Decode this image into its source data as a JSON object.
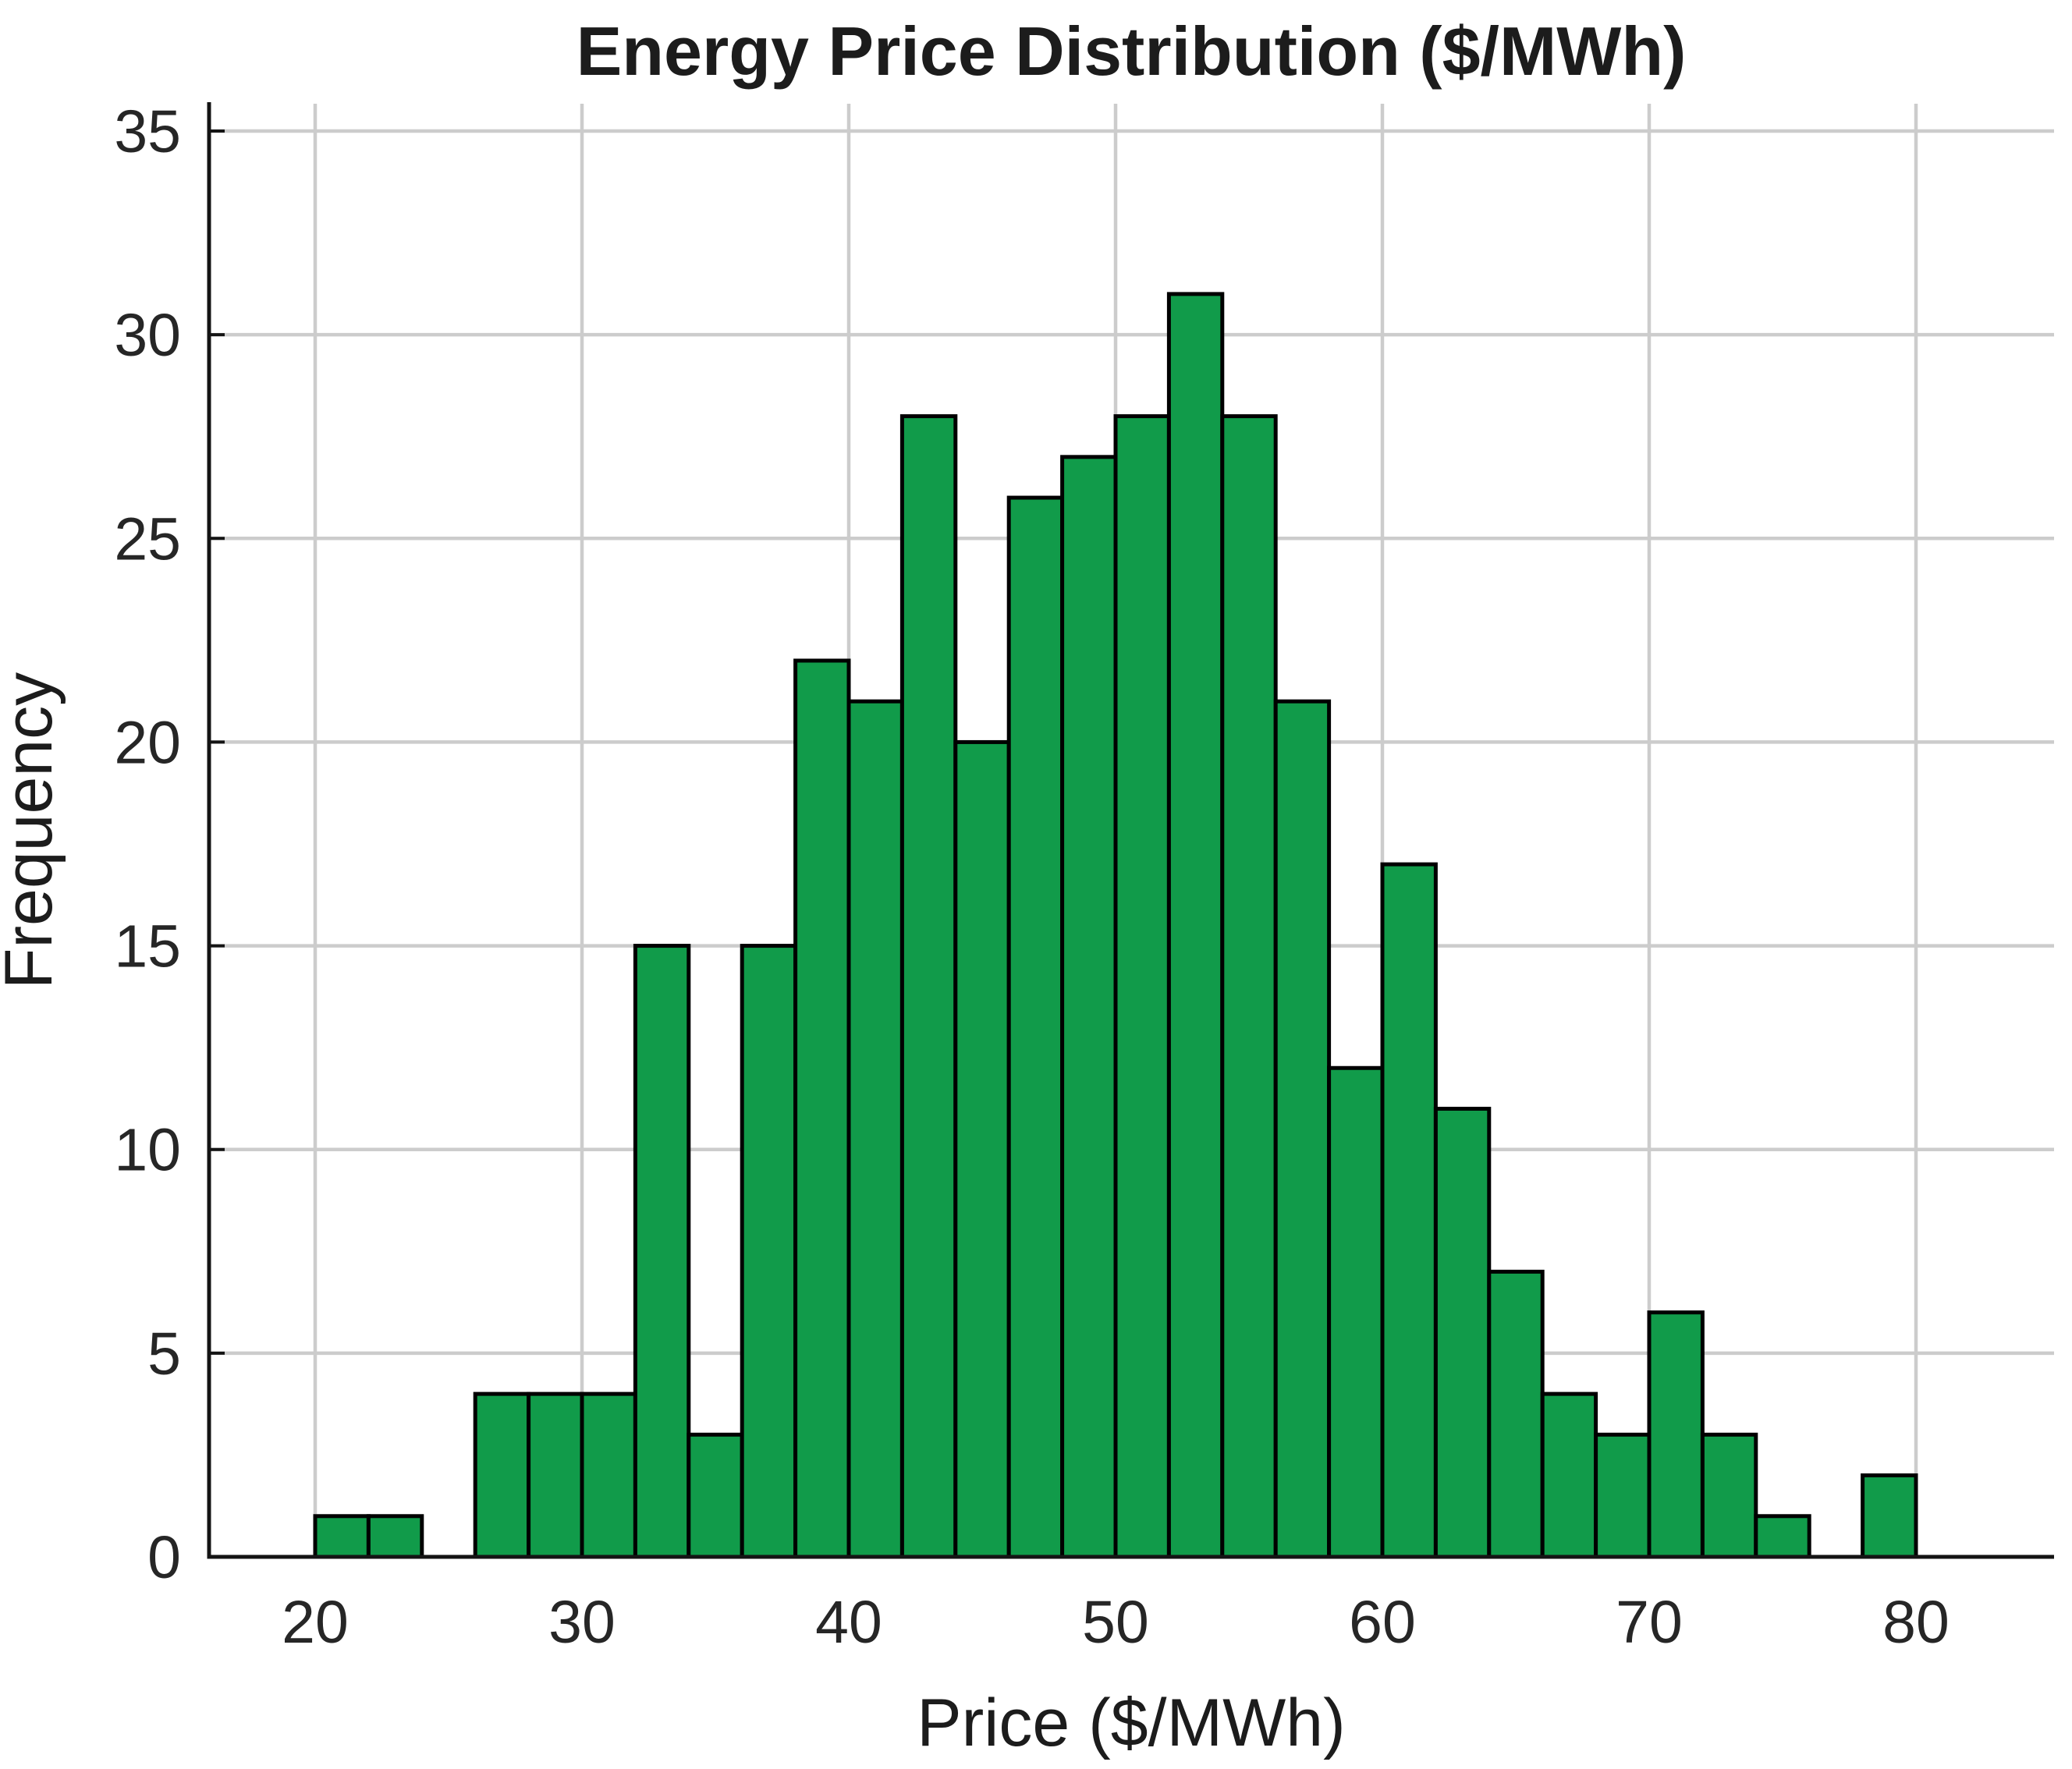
{
  "chart_data": {
    "type": "bar",
    "subtype": "histogram",
    "title": "Energy Price Distribution ($/MWh)",
    "xlabel": "Price ($/MWh)",
    "ylabel": "Frequency",
    "bin_start": 20,
    "bin_width": 2,
    "bin_edges": [
      20,
      22,
      24,
      26,
      28,
      30,
      32,
      34,
      36,
      38,
      40,
      42,
      44,
      46,
      48,
      50,
      52,
      54,
      56,
      58,
      60,
      62,
      64,
      66,
      68,
      70,
      72,
      74,
      76,
      78,
      80
    ],
    "frequencies": [
      1,
      1,
      0,
      4,
      4,
      4,
      15,
      3,
      15,
      22,
      21,
      28,
      20,
      26,
      27,
      28,
      31,
      28,
      21,
      12,
      17,
      11,
      7,
      4,
      3,
      6,
      3,
      1,
      0,
      2
    ],
    "total_count": 365,
    "x_ticks": [
      20,
      30,
      40,
      50,
      60,
      70,
      80
    ],
    "y_ticks": [
      0,
      5,
      10,
      15,
      20,
      25,
      30,
      35
    ],
    "xlim": [
      16,
      85.2
    ],
    "ylim": [
      0,
      35.7
    ],
    "grid": true,
    "legend": "none",
    "colors": {
      "bar_fill": "#119b4a",
      "bar_edge": "#000000",
      "grid_line": "#cccccc",
      "axis_line": "#141414",
      "tick_text": "#262626",
      "title_text": "#1c1c1c",
      "background": "#ffffff"
    }
  }
}
